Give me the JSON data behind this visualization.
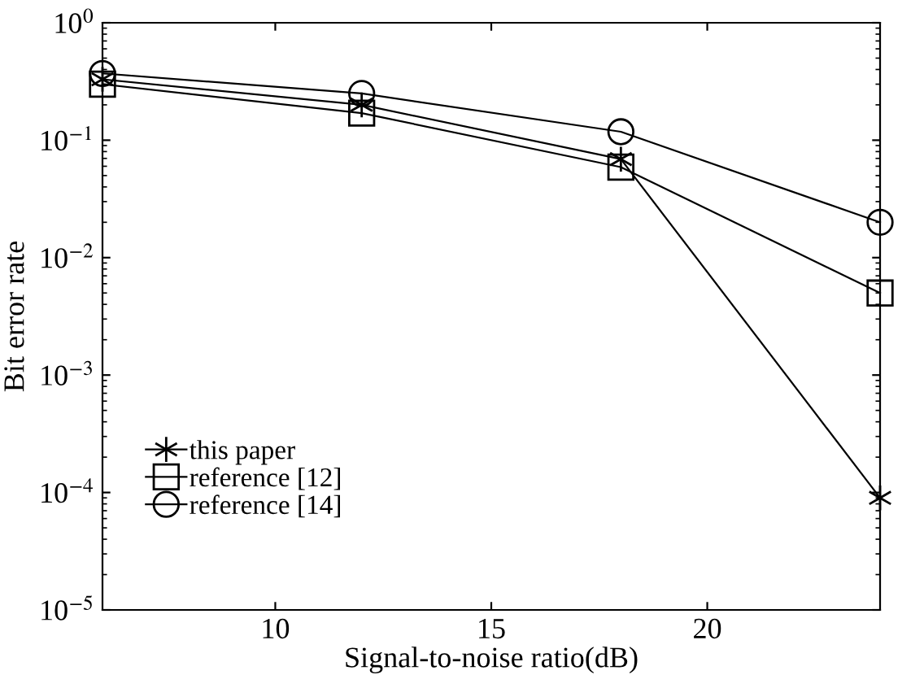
{
  "chart_data": {
    "type": "line",
    "xlabel": "Signal-to-noise ratio(dB)",
    "ylabel": "Bit error rate",
    "x": [
      6,
      12,
      18,
      24
    ],
    "series": [
      {
        "name": "this paper",
        "color": "#000000",
        "marker": "cross",
        "values": [
          0.33,
          0.2,
          0.069,
          9e-05
        ]
      },
      {
        "name": "reference [12]",
        "color": "#000000",
        "marker": "square",
        "values": [
          0.3,
          0.17,
          0.059,
          0.005
        ]
      },
      {
        "name": "reference [14]",
        "color": "#000000",
        "marker": "circle",
        "values": [
          0.37,
          0.25,
          0.118,
          0.02
        ]
      }
    ],
    "log": "y",
    "xlim": [
      6,
      24
    ],
    "xticks": [
      10,
      15,
      20
    ],
    "ylim": [
      1e-05,
      1
    ],
    "yticks": [
      {
        "value": 1e-05,
        "label": "10$^{−5}$"
      },
      {
        "value": 0.0001,
        "label": "10$^{−4}$"
      },
      {
        "value": 0.001,
        "label": "10$^{−3}$"
      },
      {
        "value": 0.01,
        "label": "10$^{−2}$"
      },
      {
        "value": 0.1,
        "label": "10$^{−1}$"
      },
      {
        "value": 1,
        "label": "10$^{0}$"
      }
    ],
    "grid": false,
    "legend": "bottom left",
    "line_style": "solid"
  }
}
